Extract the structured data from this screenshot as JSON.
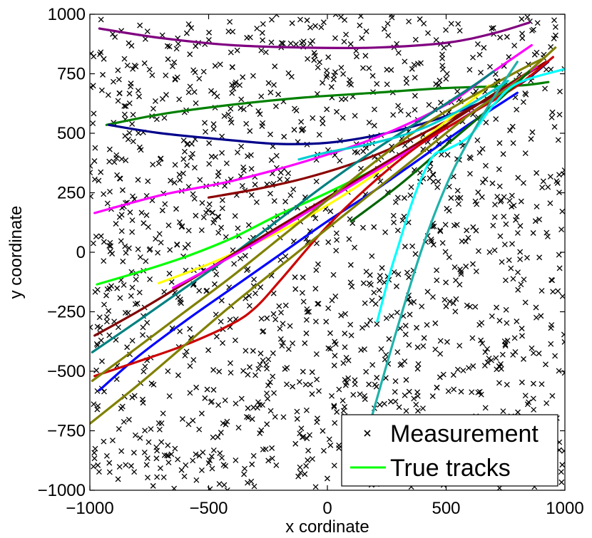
{
  "chart_data": {
    "type": "scatter",
    "title": "",
    "xlabel": "x cordinate",
    "ylabel": "y coordinate",
    "xlim": [
      -1000,
      1000
    ],
    "ylim": [
      -1000,
      1000
    ],
    "xticks": [
      -1000,
      -500,
      0,
      500,
      1000
    ],
    "yticks": [
      -1000,
      -750,
      -500,
      -250,
      0,
      250,
      500,
      750,
      1000
    ],
    "xtick_labels": [
      "−1000",
      "−500",
      "0",
      "500",
      "1000"
    ],
    "ytick_labels": [
      "−1000",
      "−750",
      "−500",
      "−250",
      "0",
      "250",
      "500",
      "750",
      "1000"
    ],
    "grid": false,
    "legend": {
      "placement": "bottom-right",
      "entries": [
        {
          "label": "Measurement",
          "marker": "x",
          "color": "#000000"
        },
        {
          "label": "True tracks",
          "marker": "line",
          "color": "#00ff00"
        }
      ]
    },
    "measurements": {
      "marker": "x",
      "color": "#000000",
      "count": 1500,
      "distribution": "uniform clutter over the full surveillance area"
    },
    "series": [
      {
        "color": "#800080",
        "x": [
          -960,
          -700,
          -400,
          -100,
          200,
          500,
          700,
          850
        ],
        "y": [
          940,
          900,
          870,
          860,
          860,
          880,
          920,
          965
        ]
      },
      {
        "color": "#008000",
        "x": [
          -930,
          -700,
          -400,
          -100,
          200,
          500,
          800,
          930
        ],
        "y": [
          535,
          580,
          620,
          650,
          670,
          690,
          700,
          715
        ]
      },
      {
        "color": "#00008b",
        "x": [
          -920,
          -700,
          -400,
          -200,
          0,
          200,
          400,
          600,
          800,
          930
        ],
        "y": [
          535,
          500,
          470,
          455,
          460,
          490,
          540,
          610,
          700,
          800
        ]
      },
      {
        "color": "#ff00ff",
        "x": [
          -980,
          -700,
          -400,
          -100,
          200,
          500,
          700,
          860
        ],
        "y": [
          165,
          240,
          300,
          380,
          480,
          620,
          760,
          870
        ]
      },
      {
        "color": "#8b0000",
        "x": [
          -500,
          -300,
          -100,
          100,
          300,
          500,
          700,
          920
        ],
        "y": [
          230,
          265,
          310,
          370,
          450,
          550,
          660,
          800
        ]
      },
      {
        "color": "#00ff00",
        "x": [
          -970,
          -800,
          -600,
          -400,
          -200,
          0,
          200,
          400,
          600,
          800
        ],
        "y": [
          -135,
          -85,
          -20,
          60,
          160,
          250,
          350,
          470,
          600,
          730
        ]
      },
      {
        "color": "#ffff00",
        "x": [
          -710,
          -500,
          -300,
          -100,
          100,
          300,
          500,
          680
        ],
        "y": [
          -130,
          -50,
          40,
          140,
          260,
          400,
          550,
          700
        ]
      },
      {
        "color": "#008080",
        "x": [
          -990,
          -800,
          -600,
          -400,
          -200,
          0,
          200,
          400,
          600,
          700
        ],
        "y": [
          -420,
          -290,
          -150,
          -10,
          140,
          290,
          430,
          560,
          690,
          760
        ]
      },
      {
        "color": "#800000",
        "x": [
          -980,
          -800,
          -600,
          -400,
          -200,
          0,
          200,
          400,
          600,
          850
        ],
        "y": [
          -350,
          -250,
          -130,
          -10,
          110,
          230,
          350,
          470,
          600,
          760
        ]
      },
      {
        "color": "#ff00ff",
        "x": [
          -650,
          -500,
          -300,
          -100,
          100,
          300,
          500,
          700,
          880
        ],
        "y": [
          -150,
          -70,
          40,
          160,
          280,
          400,
          520,
          650,
          780
        ]
      },
      {
        "color": "#0000ff",
        "x": [
          -960,
          -800,
          -600,
          -400,
          -200,
          0,
          200,
          400,
          600,
          800
        ],
        "y": [
          -580,
          -440,
          -290,
          -150,
          -10,
          130,
          260,
          400,
          540,
          670
        ]
      },
      {
        "color": "#cc0000",
        "x": [
          -980,
          -800,
          -600,
          -400,
          -300,
          -200,
          0,
          200,
          400,
          600,
          800,
          950
        ],
        "y": [
          -520,
          -460,
          -390,
          -300,
          -230,
          -120,
          110,
          300,
          460,
          580,
          700,
          820
        ]
      },
      {
        "color": "#808000",
        "x": [
          -990,
          -800,
          -600,
          -400,
          -200,
          0,
          200,
          400,
          600,
          800,
          900
        ],
        "y": [
          -540,
          -400,
          -250,
          -100,
          60,
          220,
          380,
          530,
          650,
          760,
          810
        ]
      },
      {
        "color": "#808000",
        "x": [
          -1000,
          -800,
          -600,
          -400,
          -200,
          0,
          200,
          400,
          600,
          800,
          960
        ],
        "y": [
          -720,
          -560,
          -390,
          -220,
          -60,
          100,
          260,
          420,
          580,
          720,
          860
        ]
      },
      {
        "color": "#006400",
        "x": [
          100,
          300,
          500,
          700,
          850
        ],
        "y": [
          130,
          280,
          450,
          620,
          760
        ]
      },
      {
        "color": "#00ffff",
        "x": [
          210,
          260,
          300,
          350,
          400,
          450,
          500,
          600,
          700,
          800,
          1000
        ],
        "y": [
          -290,
          -100,
          30,
          190,
          320,
          410,
          430,
          490,
          620,
          710,
          770
        ]
      },
      {
        "color": "#20b2aa",
        "x": [
          190,
          300,
          400,
          500,
          600,
          700,
          800
        ],
        "y": [
          -680,
          -300,
          20,
          280,
          480,
          650,
          800
        ]
      },
      {
        "color": "#00ced1",
        "x": [
          -120,
          0,
          200,
          400,
          600,
          760
        ],
        "y": [
          390,
          420,
          460,
          520,
          620,
          720
        ]
      }
    ]
  }
}
